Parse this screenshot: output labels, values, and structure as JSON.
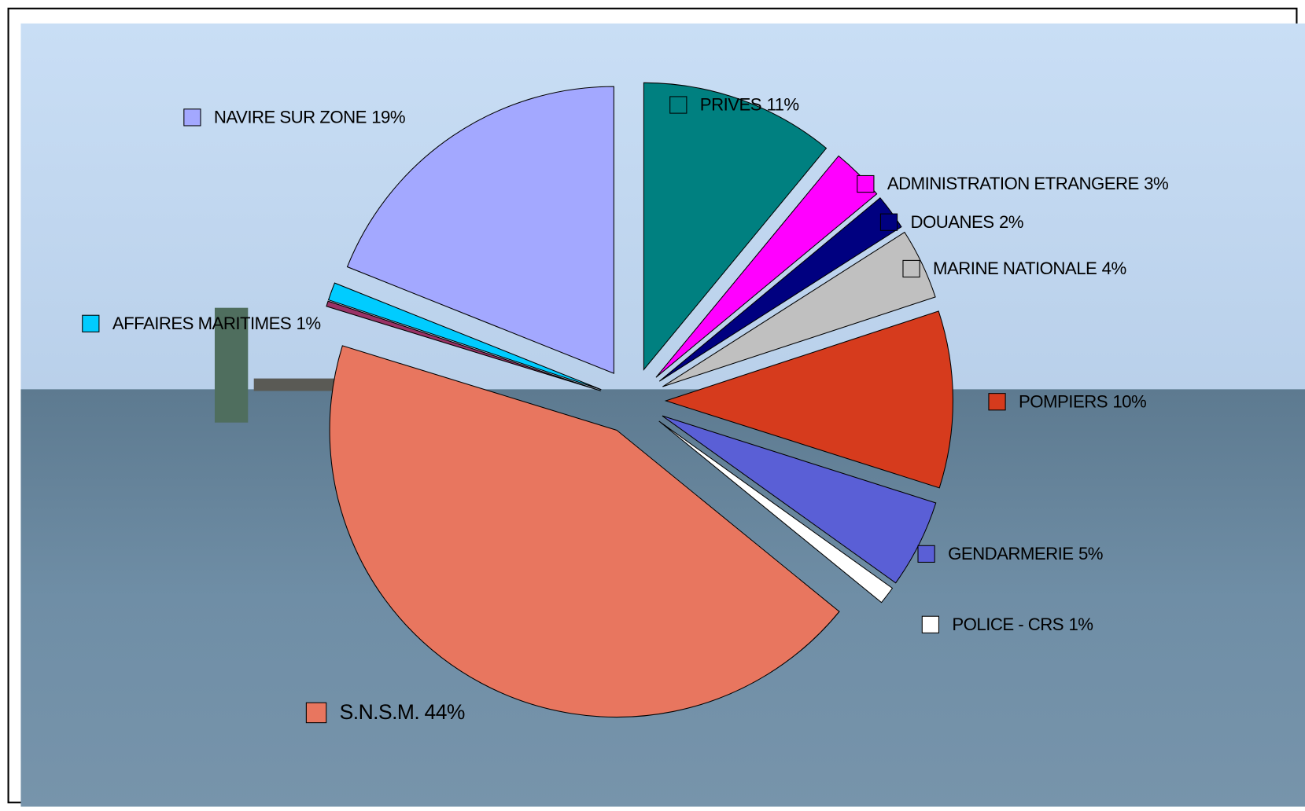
{
  "chart_data": {
    "type": "pie",
    "categories": [
      "PRIVES",
      "ADMINISTRATION ETRANGERE",
      "DOUANES",
      "MARINE NATIONALE",
      "POMPIERS",
      "GENDARMERIE",
      "POLICE - CRS",
      "S.N.S.M.",
      null,
      "AFFAIRES MARITIMES",
      "NAVIRE SUR ZONE"
    ],
    "values": [
      11,
      3,
      2,
      4,
      10,
      5,
      1,
      44,
      0.3,
      1,
      19
    ],
    "value_labels": [
      "11%",
      "3%",
      "2%",
      "4%",
      "10%",
      "5%",
      "1%",
      "44%",
      null,
      "1%",
      "19%"
    ],
    "colors": [
      "#008080",
      "#ff00ff",
      "#000080",
      "#c0c0c0",
      "#d63b1d",
      "#5a5fd6",
      "#ffffff",
      "#e8765f",
      "#993366",
      "#00ccff",
      "#a3a8ff"
    ]
  }
}
